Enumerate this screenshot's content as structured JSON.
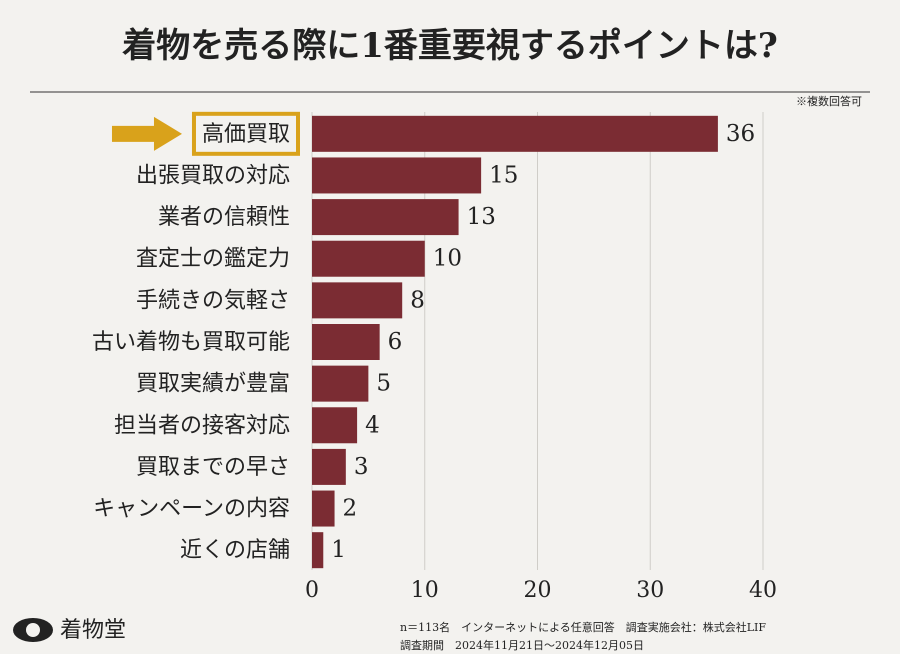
{
  "chart_data": {
    "type": "bar",
    "orientation": "horizontal",
    "title": "着物を売る際に1番重要視するポイントは?",
    "note": "※複数回答可",
    "categories": [
      "高価買取",
      "出張買取の対応",
      "業者の信頼性",
      "査定士の鑑定力",
      "手続きの気軽さ",
      "古い着物も買取可能",
      "買取実績が豊富",
      "担当者の接客対応",
      "買取までの早さ",
      "キャンペーンの内容",
      "近くの店舗"
    ],
    "values": [
      36,
      15,
      13,
      10,
      8,
      6,
      5,
      4,
      3,
      2,
      1
    ],
    "color": "#7b2c33",
    "highlight": 0,
    "highlight_color": "#d9a21b",
    "xlim": [
      0,
      40
    ],
    "xticks": [
      0,
      10,
      20,
      30,
      40
    ],
    "grid": true
  },
  "footer": {
    "survey": "n＝113名　インターネットによる任意回答　調査実施会社：株式会社LIF",
    "period": "調査期間　2024年11月21日～2024年12月05日",
    "logo": "着物堂"
  }
}
